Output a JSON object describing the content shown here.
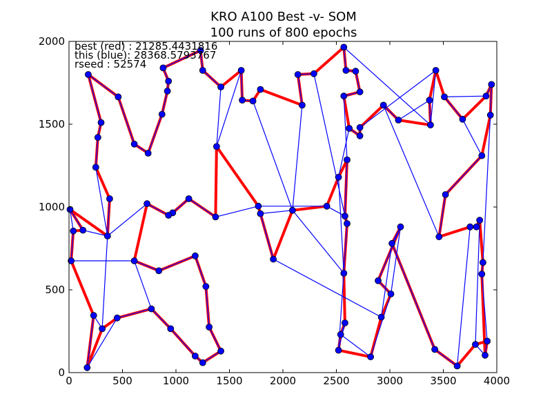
{
  "chart_data": {
    "type": "line",
    "title": "KRO A100 Best -v- SOM",
    "subtitle": "100 runs of 800 epochs",
    "xlim": [
      0,
      4000
    ],
    "ylim": [
      0,
      2000
    ],
    "grid": false,
    "xticks": [
      0,
      500,
      1000,
      1500,
      2000,
      2500,
      3000,
      3500,
      4000
    ],
    "yticks": [
      0,
      500,
      1000,
      1500,
      2000
    ],
    "annotations": [
      "best (red) : 21285.4431816",
      "this (blue): 28368.5793767",
      "rseed : 52574"
    ],
    "series": [
      {
        "color": "#ff0000",
        "points": [
          [
            180,
            1800
          ],
          [
            460,
            1665
          ],
          [
            610,
            1380
          ],
          [
            740,
            1325
          ],
          [
            870,
            1560
          ],
          [
            920,
            1700
          ],
          [
            930,
            1760
          ],
          [
            880,
            1840
          ],
          [
            1230,
            1945
          ],
          [
            1250,
            1825
          ],
          [
            1420,
            1725
          ],
          [
            1610,
            1825
          ],
          [
            1620,
            1645
          ],
          [
            1720,
            1640
          ],
          [
            1790,
            1710
          ],
          [
            2180,
            1615
          ],
          [
            2140,
            1800
          ],
          [
            2290,
            1805
          ],
          [
            2570,
            1965
          ],
          [
            2590,
            1825
          ],
          [
            2680,
            1820
          ],
          [
            2720,
            1695
          ],
          [
            2570,
            1670
          ],
          [
            2620,
            1475
          ],
          [
            2720,
            1430
          ],
          [
            2720,
            1480
          ],
          [
            2940,
            1615
          ],
          [
            3080,
            1525
          ],
          [
            3380,
            1495
          ],
          [
            3370,
            1645
          ],
          [
            3430,
            1825
          ],
          [
            3510,
            1665
          ],
          [
            3680,
            1530
          ],
          [
            3900,
            1670
          ],
          [
            3950,
            1740
          ],
          [
            3940,
            1555
          ],
          [
            3860,
            1310
          ],
          [
            3520,
            1075
          ],
          [
            3460,
            820
          ],
          [
            3750,
            880
          ],
          [
            3810,
            880
          ],
          [
            3840,
            920
          ],
          [
            3870,
            665
          ],
          [
            3860,
            595
          ],
          [
            3890,
            105
          ],
          [
            3910,
            190
          ],
          [
            3800,
            170
          ],
          [
            3630,
            40
          ],
          [
            3420,
            140
          ],
          [
            3020,
            780
          ],
          [
            3100,
            880
          ],
          [
            2890,
            555
          ],
          [
            3010,
            475
          ],
          [
            2920,
            335
          ],
          [
            2820,
            95
          ],
          [
            2520,
            135
          ],
          [
            2540,
            230
          ],
          [
            2580,
            300
          ],
          [
            2570,
            600
          ],
          [
            2600,
            900
          ],
          [
            2580,
            945
          ],
          [
            2600,
            1285
          ],
          [
            2520,
            1180
          ],
          [
            2410,
            1005
          ],
          [
            2090,
            980
          ],
          [
            1910,
            685
          ],
          [
            1790,
            960
          ],
          [
            1770,
            1005
          ],
          [
            1380,
            1365
          ],
          [
            1370,
            940
          ],
          [
            1120,
            1050
          ],
          [
            970,
            965
          ],
          [
            930,
            950
          ],
          [
            730,
            1020
          ],
          [
            610,
            675
          ],
          [
            840,
            615
          ],
          [
            1180,
            705
          ],
          [
            1280,
            520
          ],
          [
            1310,
            275
          ],
          [
            1420,
            130
          ],
          [
            1250,
            60
          ],
          [
            1180,
            100
          ],
          [
            950,
            265
          ],
          [
            770,
            385
          ],
          [
            450,
            330
          ],
          [
            310,
            265
          ],
          [
            170,
            30
          ],
          [
            230,
            345
          ],
          [
            20,
            675
          ],
          [
            40,
            855
          ],
          [
            130,
            860
          ],
          [
            10,
            985
          ],
          [
            360,
            825
          ],
          [
            380,
            1050
          ],
          [
            250,
            1240
          ],
          [
            270,
            1420
          ],
          [
            300,
            1510
          ],
          [
            180,
            1800
          ]
        ]
      },
      {
        "color": "#0000ff",
        "points": [
          [
            180,
            1800
          ],
          [
            460,
            1665
          ],
          [
            610,
            1380
          ],
          [
            740,
            1325
          ],
          [
            870,
            1560
          ],
          [
            920,
            1700
          ],
          [
            930,
            1760
          ],
          [
            880,
            1840
          ],
          [
            1230,
            1945
          ],
          [
            1250,
            1825
          ],
          [
            1420,
            1725
          ],
          [
            1380,
            1365
          ],
          [
            1610,
            1825
          ],
          [
            1620,
            1645
          ],
          [
            1720,
            1640
          ],
          [
            2090,
            980
          ],
          [
            2180,
            1615
          ],
          [
            2140,
            1800
          ],
          [
            2290,
            1805
          ],
          [
            2580,
            945
          ],
          [
            2600,
            1285
          ],
          [
            2570,
            1670
          ],
          [
            2720,
            1695
          ],
          [
            2680,
            1820
          ],
          [
            2590,
            1825
          ],
          [
            2570,
            1965
          ],
          [
            3380,
            1495
          ],
          [
            3430,
            1825
          ],
          [
            2720,
            1480
          ],
          [
            2720,
            1430
          ],
          [
            2620,
            1475
          ],
          [
            2520,
            1180
          ],
          [
            2570,
            600
          ],
          [
            2090,
            980
          ],
          [
            1790,
            960
          ],
          [
            1910,
            685
          ],
          [
            2920,
            335
          ],
          [
            3020,
            780
          ],
          [
            3100,
            880
          ],
          [
            2890,
            555
          ],
          [
            3010,
            475
          ],
          [
            2820,
            95
          ],
          [
            2540,
            230
          ],
          [
            2580,
            300
          ],
          [
            2520,
            135
          ],
          [
            2600,
            900
          ],
          [
            2580,
            945
          ],
          [
            2410,
            1005
          ],
          [
            1770,
            1005
          ],
          [
            1370,
            940
          ],
          [
            1120,
            1050
          ],
          [
            970,
            965
          ],
          [
            930,
            950
          ],
          [
            730,
            1020
          ],
          [
            360,
            825
          ],
          [
            130,
            860
          ],
          [
            10,
            985
          ],
          [
            40,
            855
          ],
          [
            20,
            675
          ],
          [
            610,
            675
          ],
          [
            770,
            385
          ],
          [
            450,
            330
          ],
          [
            170,
            30
          ],
          [
            230,
            345
          ],
          [
            310,
            265
          ],
          [
            380,
            1050
          ],
          [
            360,
            825
          ],
          [
            250,
            1240
          ],
          [
            270,
            1420
          ],
          [
            300,
            1510
          ],
          [
            180,
            1800
          ]
        ]
      },
      {
        "color": "#0000ff",
        "points": [
          [
            3380,
            1495
          ],
          [
            3370,
            1645
          ],
          [
            3080,
            1525
          ],
          [
            2940,
            1615
          ],
          [
            3460,
            820
          ],
          [
            3520,
            1075
          ],
          [
            3860,
            1310
          ],
          [
            3680,
            1530
          ],
          [
            3510,
            1665
          ],
          [
            3900,
            1670
          ],
          [
            3950,
            1740
          ],
          [
            3940,
            1555
          ],
          [
            3870,
            665
          ],
          [
            3860,
            595
          ],
          [
            3910,
            190
          ],
          [
            3890,
            105
          ],
          [
            3800,
            170
          ],
          [
            3840,
            920
          ],
          [
            3810,
            880
          ],
          [
            3750,
            880
          ],
          [
            3630,
            40
          ],
          [
            3420,
            140
          ],
          [
            3020,
            780
          ],
          [
            3100,
            880
          ],
          [
            3010,
            475
          ]
        ]
      },
      {
        "color": "#0000ff",
        "points": [
          [
            610,
            675
          ],
          [
            840,
            615
          ],
          [
            1180,
            705
          ],
          [
            1280,
            520
          ],
          [
            1310,
            275
          ],
          [
            1420,
            130
          ],
          [
            1250,
            60
          ],
          [
            1180,
            100
          ],
          [
            950,
            265
          ],
          [
            770,
            385
          ]
        ]
      }
    ]
  }
}
